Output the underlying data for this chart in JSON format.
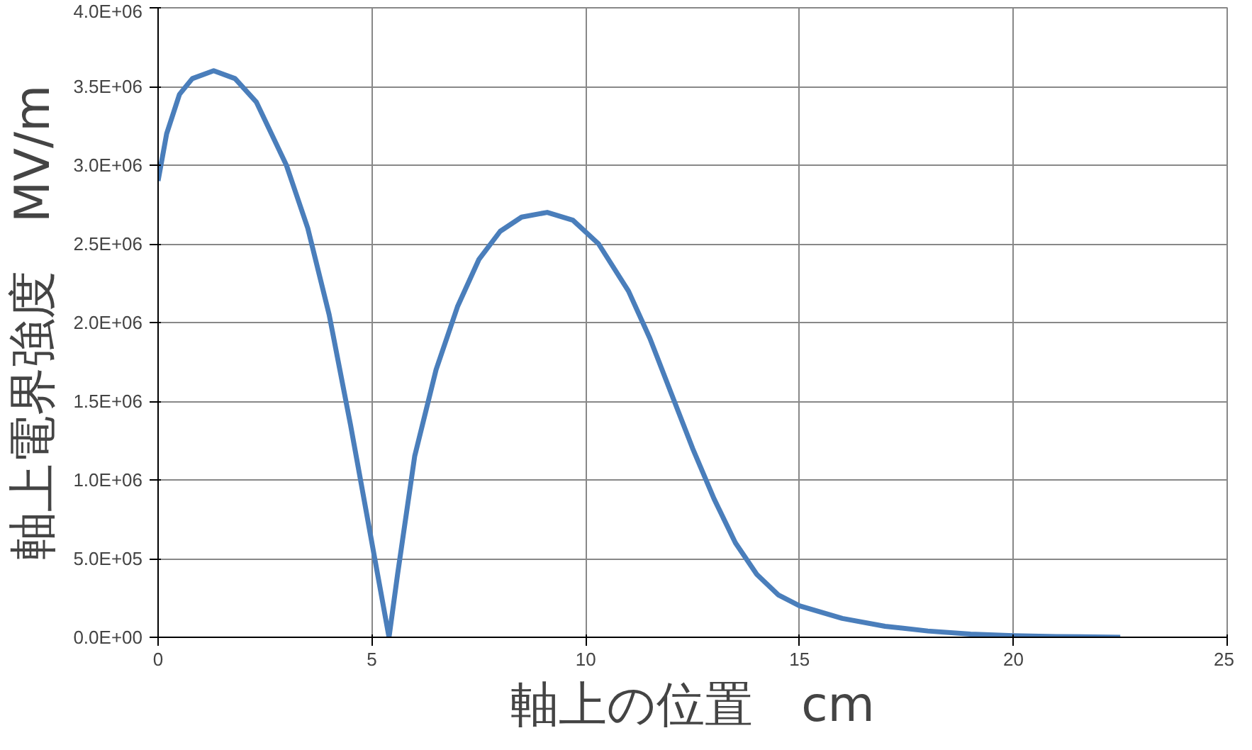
{
  "chart_data": {
    "type": "line",
    "xlabel": "軸上の位置　cm",
    "ylabel": "軸上電界強度　MV/m",
    "series": [
      {
        "color": "#4a7ebb",
        "x": [
          0,
          0.2,
          0.5,
          0.8,
          1.3,
          1.8,
          2.3,
          3,
          3.5,
          4,
          4.5,
          5,
          5.2,
          5.4,
          5.6,
          6,
          6.5,
          7,
          7.5,
          8,
          8.5,
          9.1,
          9.7,
          10.3,
          11,
          11.5,
          12,
          12.5,
          13,
          13.5,
          14,
          14.5,
          15,
          16,
          17,
          18,
          19,
          20,
          21,
          22.5
        ],
        "values": [
          2900000.0,
          3200000.0,
          3450000.0,
          3550000.0,
          3600000.0,
          3550000.0,
          3400000.0,
          3000000.0,
          2600000.0,
          2050000.0,
          1350000.0,
          600000.0,
          300000.0,
          0.0,
          400000.0,
          1150000.0,
          1700000.0,
          2100000.0,
          2400000.0,
          2580000.0,
          2670000.0,
          2700000.0,
          2650000.0,
          2500000.0,
          2200000.0,
          1900000.0,
          1550000.0,
          1200000.0,
          880000.0,
          600000.0,
          400000.0,
          270000.0,
          200000.0,
          120000.0,
          70000.0,
          40000.0,
          20000.0,
          10000.0,
          5000.0,
          0.0
        ]
      }
    ],
    "xlim": [
      0,
      25
    ],
    "xticks": [
      0,
      5,
      10,
      15,
      20,
      25
    ],
    "ylim": [
      0,
      4000000
    ],
    "yticks": [
      {
        "value": 0,
        "label": "0.0E+00"
      },
      {
        "value": 500000,
        "label": "5.0E+05"
      },
      {
        "value": 1000000,
        "label": "1.0E+06"
      },
      {
        "value": 1500000,
        "label": "1.5E+06"
      },
      {
        "value": 2000000,
        "label": "2.0E+06"
      },
      {
        "value": 2500000,
        "label": "2.5E+06"
      },
      {
        "value": 3000000,
        "label": "3.0E+06"
      },
      {
        "value": 3500000,
        "label": "3.5E+06"
      },
      {
        "value": 4000000,
        "label": "4.0E+06"
      }
    ],
    "grid": true,
    "line_style": "solid"
  }
}
